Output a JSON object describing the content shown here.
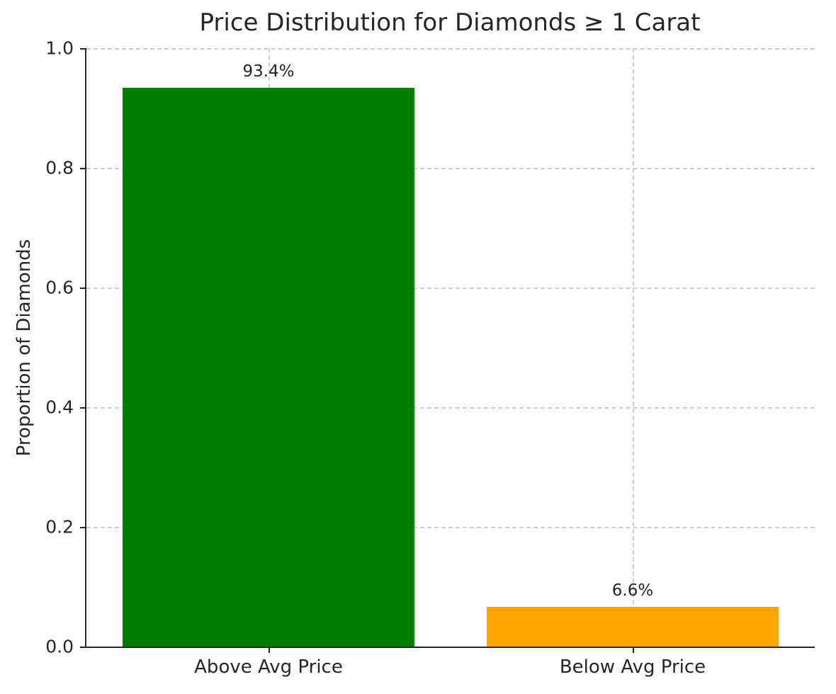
{
  "chart_data": {
    "type": "bar",
    "title": "Price Distribution for Diamonds ≥ 1 Carat",
    "xlabel": "",
    "ylabel": "Proportion of Diamonds",
    "categories": [
      "Above Avg Price",
      "Below Avg Price"
    ],
    "values": [
      0.934,
      0.066
    ],
    "bar_labels": [
      "93.4%",
      "6.6%"
    ],
    "bar_colors": [
      "#008000",
      "#FFA500"
    ],
    "ylim": [
      0,
      1.0
    ],
    "yticks": [
      "0.0",
      "0.2",
      "0.4",
      "0.6",
      "0.8",
      "1.0"
    ],
    "grid": true,
    "grid_style": "dashed",
    "legend": "none",
    "text_color": "#262626",
    "grid_color": "#cccccc"
  }
}
